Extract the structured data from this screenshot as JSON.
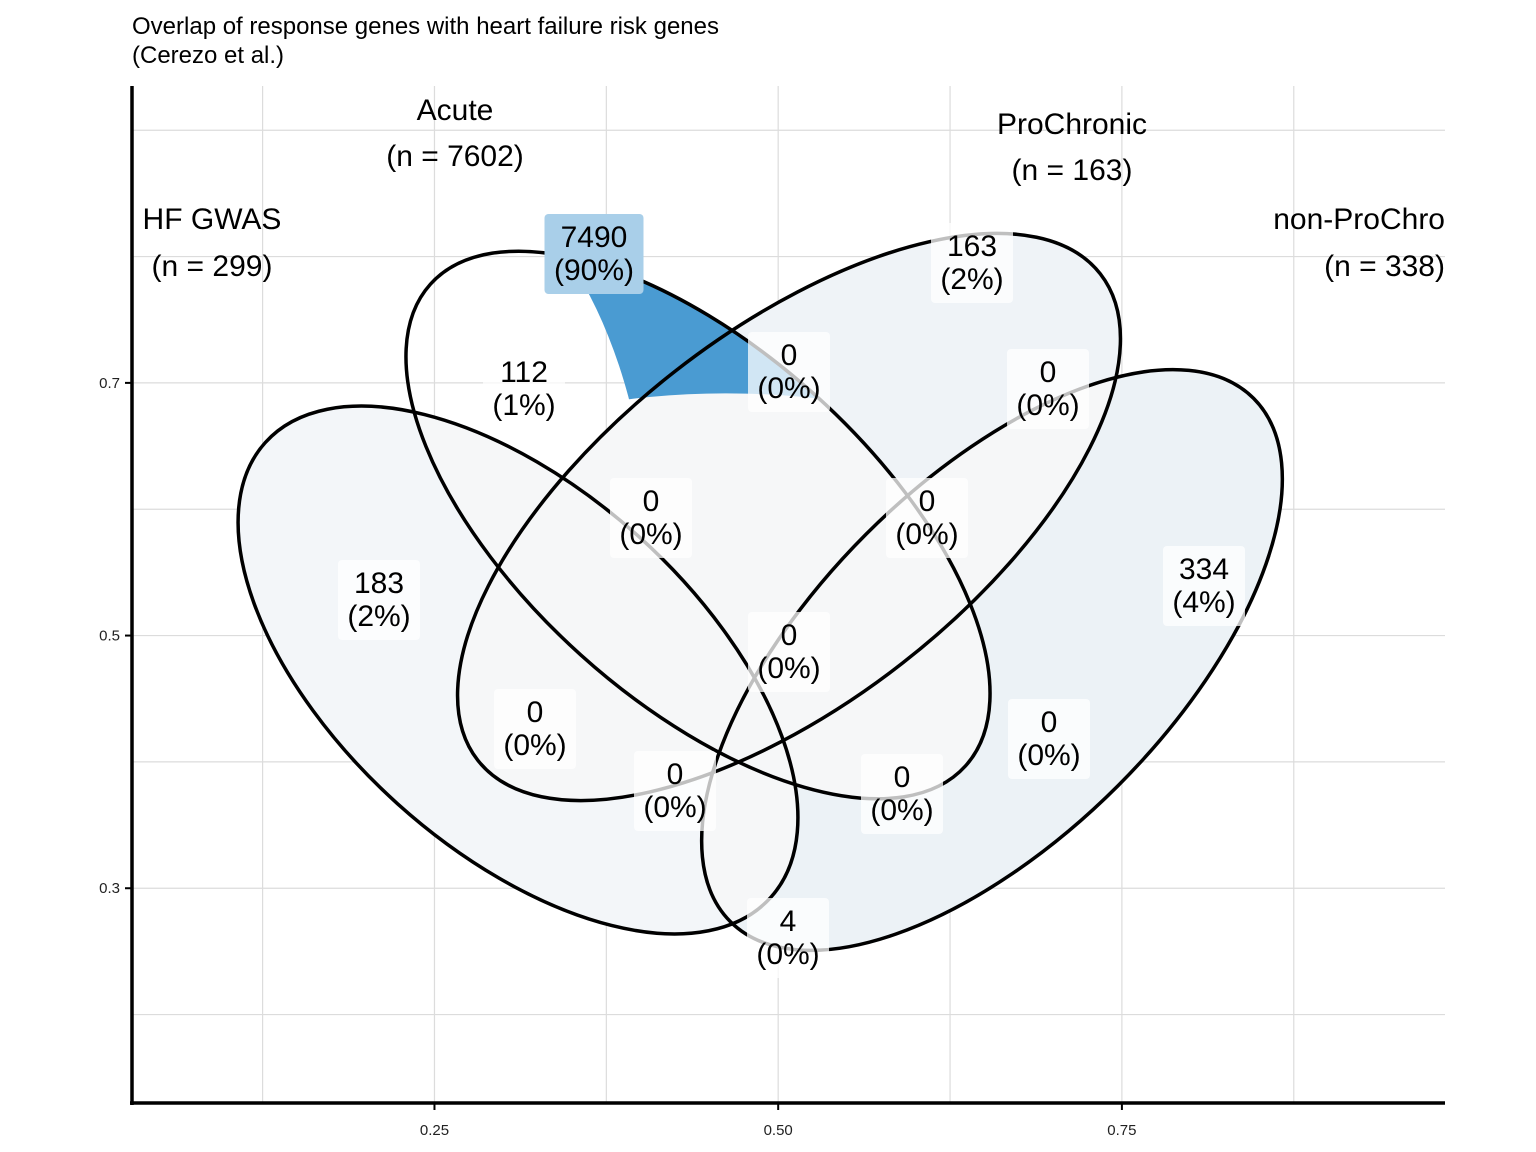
{
  "chart_data": {
    "type": "venn",
    "title": "Overlap of response genes with heart failure risk genes",
    "subtitle": "(Cerezo et al.)",
    "xlabel": "",
    "ylabel": "",
    "xlim": [
      0.03,
      0.985
    ],
    "ylim": [
      0.13,
      0.935
    ],
    "x_ticks": [
      0.25,
      0.5,
      0.75
    ],
    "x_tick_labels": [
      "0.25",
      "0.50",
      "0.75"
    ],
    "y_ticks": [
      0.3,
      0.5,
      0.7
    ],
    "y_tick_labels": [
      "0.3",
      "0.5",
      "0.7"
    ],
    "grid": true,
    "sets": [
      {
        "name": "HF GWAS",
        "n_label": "(n = 299)",
        "n": 299
      },
      {
        "name": "Acute",
        "n_label": "(n = 7602)",
        "n": 7602
      },
      {
        "name": "ProChronic",
        "n_label": "(n = 163)",
        "n": 163
      },
      {
        "name": "non-ProChro",
        "n_label": "(n = 338)",
        "n": 338
      }
    ],
    "regions": [
      {
        "sets": [
          "Acute"
        ],
        "count": "7490",
        "pct": "(90%)",
        "value": 7490
      },
      {
        "sets": [
          "ProChronic"
        ],
        "count": "163",
        "pct": "(2%)",
        "value": 163
      },
      {
        "sets": [
          "HF GWAS",
          "Acute"
        ],
        "count": "112",
        "pct": "(1%)",
        "value": 112
      },
      {
        "sets": [
          "Acute",
          "ProChronic"
        ],
        "count": "0",
        "pct": "(0%)",
        "value": 0
      },
      {
        "sets": [
          "ProChronic",
          "non-ProChronic"
        ],
        "count": "0",
        "pct": "(0%)",
        "value": 0
      },
      {
        "sets": [
          "HF GWAS",
          "Acute",
          "ProChronic"
        ],
        "count": "0",
        "pct": "(0%)",
        "value": 0
      },
      {
        "sets": [
          "Acute",
          "ProChronic",
          "non-ProChronic"
        ],
        "count": "0",
        "pct": "(0%)",
        "value": 0
      },
      {
        "sets": [
          "HF GWAS"
        ],
        "count": "183",
        "pct": "(2%)",
        "value": 183
      },
      {
        "sets": [
          "non-ProChronic"
        ],
        "count": "334",
        "pct": "(4%)",
        "value": 334
      },
      {
        "sets": [
          "HF GWAS",
          "Acute",
          "ProChronic",
          "non-ProChronic"
        ],
        "count": "0",
        "pct": "(0%)",
        "value": 0
      },
      {
        "sets": [
          "HF GWAS",
          "ProChronic"
        ],
        "count": "0",
        "pct": "(0%)",
        "value": 0
      },
      {
        "sets": [
          "Acute",
          "non-ProChronic"
        ],
        "count": "0",
        "pct": "(0%)",
        "value": 0
      },
      {
        "sets": [
          "HF GWAS",
          "ProChronic",
          "non-ProChronic"
        ],
        "count": "0",
        "pct": "(0%)",
        "value": 0
      },
      {
        "sets": [
          "HF GWAS",
          "Acute",
          "non-ProChronic"
        ],
        "count": "0",
        "pct": "(0%)",
        "value": 0
      },
      {
        "sets": [
          "HF GWAS",
          "non-ProChronic"
        ],
        "count": "4",
        "pct": "(0%)",
        "value": 4
      }
    ],
    "colors": {
      "highlight": "#4a9bd2",
      "highlight_label_bg": "#a9cfe9",
      "hf_only": "#f3f6f9",
      "pro_only": "#eff3f7",
      "nonpro_only": "#ecf2f6",
      "overlap": "#f6f7f8",
      "label_bg": "#ffffff",
      "outline": "#000000",
      "grid": "#dcdcdc"
    }
  }
}
